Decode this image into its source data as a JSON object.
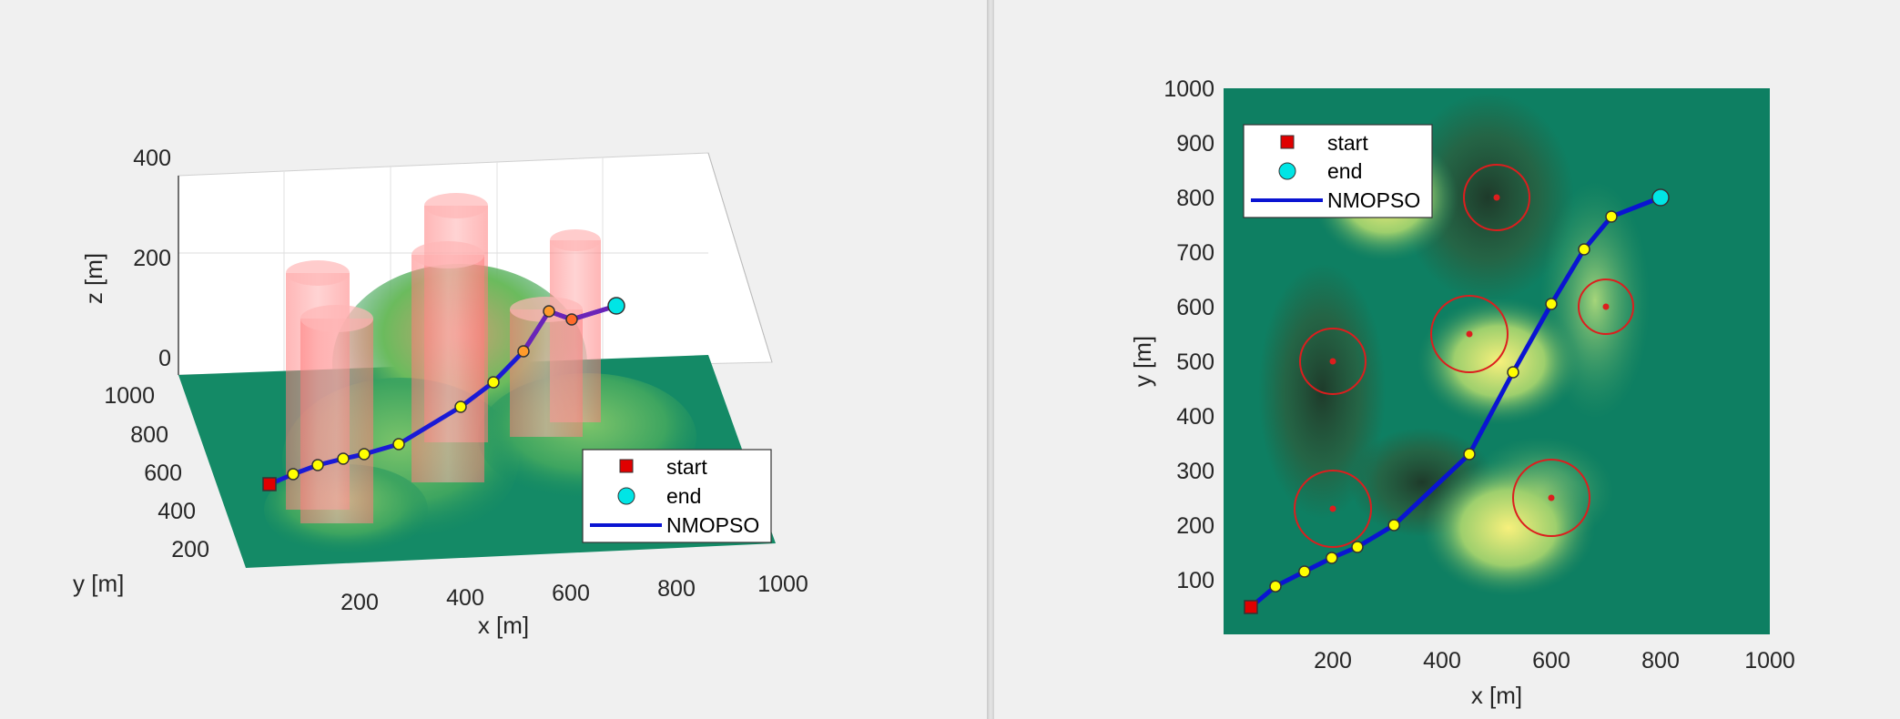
{
  "chart_data": [
    {
      "type": "line",
      "view": "3d",
      "xlabel": "x [m]",
      "ylabel": "y [m]",
      "zlabel": "z [m]",
      "xticks": [
        "200",
        "400",
        "600",
        "800",
        "1000"
      ],
      "yticks": [
        "1000",
        "800",
        "600",
        "400",
        "200"
      ],
      "zticks": [
        "400",
        "200",
        "0"
      ],
      "xlim": [
        0,
        1000
      ],
      "ylim": [
        0,
        1000
      ],
      "zlim": [
        0,
        400
      ],
      "legend": {
        "placement": "bottom-right",
        "entries": [
          "start",
          "end",
          "NMOPSO"
        ]
      },
      "colors": {
        "start": "#e00000",
        "end": "#00e5e5",
        "path": "#0a14d2",
        "waypoint": "#ffff00",
        "obstacle": "#ff6b6b"
      }
    },
    {
      "type": "line",
      "view": "top",
      "xlabel": "x [m]",
      "ylabel": "y [m]",
      "xticks": [
        "200",
        "400",
        "600",
        "800",
        "1000"
      ],
      "yticks": [
        "1000",
        "900",
        "800",
        "700",
        "600",
        "500",
        "400",
        "300",
        "200",
        "100"
      ],
      "xlim": [
        0,
        1000
      ],
      "ylim": [
        0,
        1000
      ],
      "legend": {
        "placement": "top-left",
        "entries": [
          "start",
          "end",
          "NMOPSO"
        ]
      },
      "series": [
        {
          "name": "NMOPSO",
          "x": [
            50,
            95,
            148,
            198,
            245,
            312,
            450,
            530,
            600,
            660,
            710,
            800
          ],
          "y": [
            50,
            88,
            115,
            140,
            160,
            200,
            330,
            480,
            605,
            705,
            765,
            800
          ]
        }
      ],
      "start": {
        "x": 50,
        "y": 50
      },
      "end": {
        "x": 800,
        "y": 800
      },
      "obstacles": [
        {
          "x": 500,
          "y": 800,
          "r": 60
        },
        {
          "x": 450,
          "y": 550,
          "r": 70
        },
        {
          "x": 200,
          "y": 500,
          "r": 60
        },
        {
          "x": 700,
          "y": 600,
          "r": 50
        },
        {
          "x": 200,
          "y": 230,
          "r": 70
        },
        {
          "x": 600,
          "y": 250,
          "r": 70
        }
      ],
      "colors": {
        "start": "#e00000",
        "end": "#00e5e5",
        "path": "#0a14d2",
        "waypoint": "#ffff00",
        "obstacle": "#dc1e1e",
        "terrain_low": "#0e7f62",
        "terrain_high": "#f5f07a"
      }
    }
  ]
}
